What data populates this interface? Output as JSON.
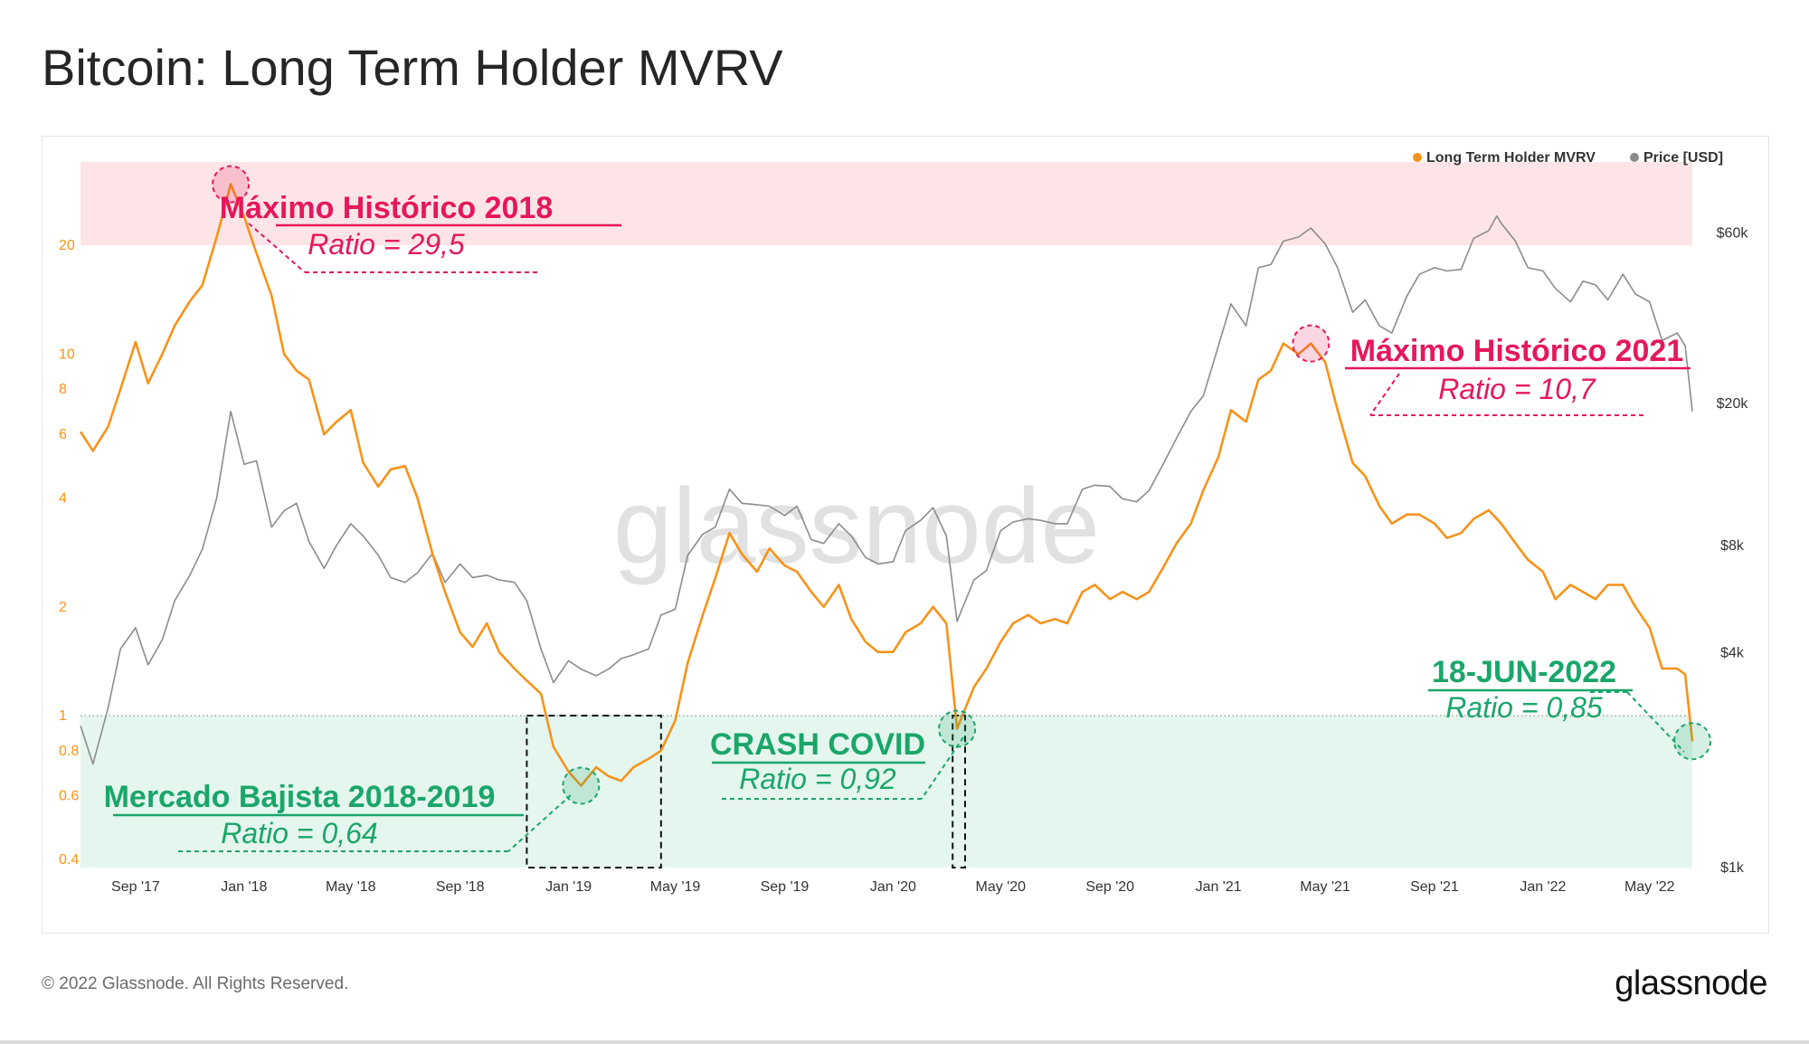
{
  "title": "Bitcoin: Long Term Holder MVRV",
  "footer": {
    "copyright": "© 2022 Glassnode. All Rights Reserved.",
    "logo": "glassnode"
  },
  "watermark": "glassnode",
  "colors": {
    "mvrv": "#f7931a",
    "price": "#8c8c8c",
    "high_zone": "#fde4e6",
    "low_zone": "#e4f6ee",
    "pink_annotation": "#e6175c",
    "green_annotation": "#1aa66a"
  },
  "chart_data": {
    "type": "line",
    "title": "Bitcoin: Long Term Holder MVRV",
    "legend_position": "top-right",
    "x_ticks": [
      "Sep '17",
      "Jan '18",
      "May '18",
      "Sep '18",
      "Jan '19",
      "May '19",
      "Sep '19",
      "Jan '20",
      "May '20",
      "Sep '20",
      "Jan '21",
      "May '21",
      "Sep '21",
      "Jan '22",
      "May '22"
    ],
    "y_left": {
      "scale": "log",
      "range": [
        0.38,
        34
      ],
      "ticks": [
        "0.4",
        "0.6",
        "0.8",
        "1",
        "2",
        "4",
        "6",
        "8",
        "10",
        "20"
      ]
    },
    "y_right": {
      "scale": "log",
      "range": [
        1000,
        95000
      ],
      "ticks": [
        "$1k",
        "$4k",
        "$8k",
        "$20k",
        "$60k"
      ]
    },
    "zones": [
      {
        "name": "high",
        "from": 20,
        "to": 34
      },
      {
        "name": "low",
        "from": 0.38,
        "to": 1
      }
    ],
    "series": [
      {
        "name": "Long Term Holder MVRV",
        "axis": "left",
        "points": [
          [
            "2017-07-01",
            6.1
          ],
          [
            "2017-07-15",
            5.4
          ],
          [
            "2017-08-01",
            6.3
          ],
          [
            "2017-08-15",
            8.0
          ],
          [
            "2017-09-01",
            10.8
          ],
          [
            "2017-09-15",
            8.3
          ],
          [
            "2017-10-01",
            10.0
          ],
          [
            "2017-10-15",
            12.0
          ],
          [
            "2017-11-01",
            14.0
          ],
          [
            "2017-11-15",
            15.5
          ],
          [
            "2017-12-01",
            21.0
          ],
          [
            "2017-12-17",
            29.5
          ],
          [
            "2018-01-01",
            24.0
          ],
          [
            "2018-01-15",
            19.0
          ],
          [
            "2018-02-01",
            14.5
          ],
          [
            "2018-02-15",
            10.0
          ],
          [
            "2018-03-01",
            9.0
          ],
          [
            "2018-03-15",
            8.5
          ],
          [
            "2018-04-01",
            6.0
          ],
          [
            "2018-04-15",
            6.5
          ],
          [
            "2018-05-01",
            7.0
          ],
          [
            "2018-05-15",
            5.0
          ],
          [
            "2018-06-01",
            4.3
          ],
          [
            "2018-06-15",
            4.8
          ],
          [
            "2018-07-01",
            4.9
          ],
          [
            "2018-07-15",
            4.0
          ],
          [
            "2018-08-01",
            2.8
          ],
          [
            "2018-08-15",
            2.2
          ],
          [
            "2018-09-01",
            1.7
          ],
          [
            "2018-09-15",
            1.55
          ],
          [
            "2018-10-01",
            1.8
          ],
          [
            "2018-10-15",
            1.5
          ],
          [
            "2018-11-01",
            1.35
          ],
          [
            "2018-11-15",
            1.25
          ],
          [
            "2018-12-01",
            1.15
          ],
          [
            "2018-12-15",
            0.82
          ],
          [
            "2019-01-01",
            0.7
          ],
          [
            "2019-01-15",
            0.64
          ],
          [
            "2019-02-01",
            0.72
          ],
          [
            "2019-02-15",
            0.68
          ],
          [
            "2019-03-01",
            0.66
          ],
          [
            "2019-03-15",
            0.72
          ],
          [
            "2019-04-01",
            0.76
          ],
          [
            "2019-04-15",
            0.8
          ],
          [
            "2019-05-01",
            0.97
          ],
          [
            "2019-05-15",
            1.4
          ],
          [
            "2019-06-01",
            1.9
          ],
          [
            "2019-06-15",
            2.4
          ],
          [
            "2019-07-01",
            3.2
          ],
          [
            "2019-07-15",
            2.8
          ],
          [
            "2019-08-01",
            2.5
          ],
          [
            "2019-08-15",
            2.9
          ],
          [
            "2019-09-01",
            2.6
          ],
          [
            "2019-09-15",
            2.5
          ],
          [
            "2019-10-01",
            2.2
          ],
          [
            "2019-10-15",
            2.0
          ],
          [
            "2019-11-01",
            2.3
          ],
          [
            "2019-11-15",
            1.85
          ],
          [
            "2019-12-01",
            1.6
          ],
          [
            "2019-12-15",
            1.5
          ],
          [
            "2020-01-01",
            1.5
          ],
          [
            "2020-01-15",
            1.7
          ],
          [
            "2020-02-01",
            1.8
          ],
          [
            "2020-02-15",
            2.0
          ],
          [
            "2020-03-01",
            1.8
          ],
          [
            "2020-03-13",
            0.92
          ],
          [
            "2020-04-01",
            1.2
          ],
          [
            "2020-04-15",
            1.35
          ],
          [
            "2020-05-01",
            1.6
          ],
          [
            "2020-05-15",
            1.8
          ],
          [
            "2020-06-01",
            1.9
          ],
          [
            "2020-06-15",
            1.8
          ],
          [
            "2020-07-01",
            1.85
          ],
          [
            "2020-07-15",
            1.8
          ],
          [
            "2020-08-01",
            2.2
          ],
          [
            "2020-08-15",
            2.3
          ],
          [
            "2020-09-01",
            2.1
          ],
          [
            "2020-09-15",
            2.2
          ],
          [
            "2020-10-01",
            2.1
          ],
          [
            "2020-10-15",
            2.2
          ],
          [
            "2020-11-01",
            2.6
          ],
          [
            "2020-11-15",
            3.0
          ],
          [
            "2020-12-01",
            3.4
          ],
          [
            "2020-12-15",
            4.2
          ],
          [
            "2021-01-01",
            5.2
          ],
          [
            "2021-01-15",
            7.0
          ],
          [
            "2021-02-01",
            6.5
          ],
          [
            "2021-02-15",
            8.5
          ],
          [
            "2021-03-01",
            9.0
          ],
          [
            "2021-03-15",
            10.7
          ],
          [
            "2021-04-01",
            10.0
          ],
          [
            "2021-04-15",
            10.7
          ],
          [
            "2021-05-01",
            9.5
          ],
          [
            "2021-05-15",
            7.0
          ],
          [
            "2021-06-01",
            5.0
          ],
          [
            "2021-06-15",
            4.6
          ],
          [
            "2021-07-01",
            3.8
          ],
          [
            "2021-07-15",
            3.4
          ],
          [
            "2021-08-01",
            3.6
          ],
          [
            "2021-08-15",
            3.6
          ],
          [
            "2021-09-01",
            3.4
          ],
          [
            "2021-09-15",
            3.1
          ],
          [
            "2021-10-01",
            3.2
          ],
          [
            "2021-10-15",
            3.5
          ],
          [
            "2021-11-01",
            3.7
          ],
          [
            "2021-11-15",
            3.4
          ],
          [
            "2021-12-01",
            3.0
          ],
          [
            "2021-12-15",
            2.7
          ],
          [
            "2022-01-01",
            2.5
          ],
          [
            "2022-01-15",
            2.1
          ],
          [
            "2022-02-01",
            2.3
          ],
          [
            "2022-02-15",
            2.2
          ],
          [
            "2022-03-01",
            2.1
          ],
          [
            "2022-03-15",
            2.3
          ],
          [
            "2022-04-01",
            2.3
          ],
          [
            "2022-04-15",
            2.0
          ],
          [
            "2022-05-01",
            1.75
          ],
          [
            "2022-05-15",
            1.35
          ],
          [
            "2022-06-01",
            1.35
          ],
          [
            "2022-06-10",
            1.3
          ],
          [
            "2022-06-18",
            0.85
          ]
        ]
      },
      {
        "name": "Price [USD]",
        "axis": "right",
        "points": [
          [
            "2017-07-01",
            2500
          ],
          [
            "2017-07-15",
            1950
          ],
          [
            "2017-08-01",
            2800
          ],
          [
            "2017-08-15",
            4100
          ],
          [
            "2017-09-01",
            4700
          ],
          [
            "2017-09-15",
            3700
          ],
          [
            "2017-10-01",
            4350
          ],
          [
            "2017-10-15",
            5600
          ],
          [
            "2017-11-01",
            6600
          ],
          [
            "2017-11-15",
            7800
          ],
          [
            "2017-12-01",
            10800
          ],
          [
            "2017-12-17",
            19000
          ],
          [
            "2018-01-01",
            13500
          ],
          [
            "2018-01-15",
            13800
          ],
          [
            "2018-02-01",
            9000
          ],
          [
            "2018-02-15",
            10000
          ],
          [
            "2018-03-01",
            10500
          ],
          [
            "2018-03-15",
            8200
          ],
          [
            "2018-04-01",
            6900
          ],
          [
            "2018-04-15",
            8000
          ],
          [
            "2018-05-01",
            9200
          ],
          [
            "2018-05-15",
            8500
          ],
          [
            "2018-06-01",
            7500
          ],
          [
            "2018-06-15",
            6500
          ],
          [
            "2018-07-01",
            6300
          ],
          [
            "2018-07-15",
            6700
          ],
          [
            "2018-08-01",
            7600
          ],
          [
            "2018-08-15",
            6300
          ],
          [
            "2018-09-01",
            7100
          ],
          [
            "2018-09-15",
            6500
          ],
          [
            "2018-10-01",
            6600
          ],
          [
            "2018-10-15",
            6400
          ],
          [
            "2018-11-01",
            6300
          ],
          [
            "2018-11-15",
            5600
          ],
          [
            "2018-12-01",
            4100
          ],
          [
            "2018-12-15",
            3300
          ],
          [
            "2019-01-01",
            3800
          ],
          [
            "2019-01-15",
            3600
          ],
          [
            "2019-02-01",
            3450
          ],
          [
            "2019-02-15",
            3600
          ],
          [
            "2019-03-01",
            3850
          ],
          [
            "2019-03-15",
            3950
          ],
          [
            "2019-04-01",
            4100
          ],
          [
            "2019-04-15",
            5100
          ],
          [
            "2019-05-01",
            5300
          ],
          [
            "2019-05-15",
            7500
          ],
          [
            "2019-06-01",
            8600
          ],
          [
            "2019-06-15",
            9000
          ],
          [
            "2019-07-01",
            11500
          ],
          [
            "2019-07-15",
            10500
          ],
          [
            "2019-08-01",
            10400
          ],
          [
            "2019-08-15",
            10300
          ],
          [
            "2019-09-01",
            9700
          ],
          [
            "2019-09-15",
            10300
          ],
          [
            "2019-10-01",
            8300
          ],
          [
            "2019-10-15",
            8100
          ],
          [
            "2019-11-01",
            9200
          ],
          [
            "2019-11-15",
            8500
          ],
          [
            "2019-12-01",
            7400
          ],
          [
            "2019-12-15",
            7100
          ],
          [
            "2020-01-01",
            7200
          ],
          [
            "2020-01-15",
            8800
          ],
          [
            "2020-02-01",
            9400
          ],
          [
            "2020-02-15",
            10200
          ],
          [
            "2020-03-01",
            8500
          ],
          [
            "2020-03-13",
            4900
          ],
          [
            "2020-04-01",
            6400
          ],
          [
            "2020-04-15",
            6800
          ],
          [
            "2020-05-01",
            8800
          ],
          [
            "2020-05-15",
            9300
          ],
          [
            "2020-06-01",
            9500
          ],
          [
            "2020-06-15",
            9400
          ],
          [
            "2020-07-01",
            9200
          ],
          [
            "2020-07-15",
            9200
          ],
          [
            "2020-08-01",
            11500
          ],
          [
            "2020-08-15",
            11800
          ],
          [
            "2020-09-01",
            11700
          ],
          [
            "2020-09-15",
            10800
          ],
          [
            "2020-10-01",
            10600
          ],
          [
            "2020-10-15",
            11400
          ],
          [
            "2020-11-01",
            13700
          ],
          [
            "2020-11-15",
            16000
          ],
          [
            "2020-12-01",
            19000
          ],
          [
            "2020-12-15",
            21000
          ],
          [
            "2021-01-01",
            29000
          ],
          [
            "2021-01-15",
            38000
          ],
          [
            "2021-02-01",
            33000
          ],
          [
            "2021-02-15",
            48000
          ],
          [
            "2021-03-01",
            49000
          ],
          [
            "2021-03-15",
            57000
          ],
          [
            "2021-04-01",
            58500
          ],
          [
            "2021-04-15",
            62000
          ],
          [
            "2021-05-01",
            56000
          ],
          [
            "2021-05-15",
            48000
          ],
          [
            "2021-06-01",
            36000
          ],
          [
            "2021-06-15",
            39000
          ],
          [
            "2021-07-01",
            33000
          ],
          [
            "2021-07-15",
            31500
          ],
          [
            "2021-08-01",
            40000
          ],
          [
            "2021-08-15",
            46000
          ],
          [
            "2021-09-01",
            48000
          ],
          [
            "2021-09-15",
            47000
          ],
          [
            "2021-10-01",
            47500
          ],
          [
            "2021-10-15",
            58000
          ],
          [
            "2021-11-01",
            61000
          ],
          [
            "2021-11-10",
            67000
          ],
          [
            "2021-11-15",
            64000
          ],
          [
            "2021-12-01",
            57000
          ],
          [
            "2021-12-15",
            48000
          ],
          [
            "2022-01-01",
            47000
          ],
          [
            "2022-01-15",
            42000
          ],
          [
            "2022-02-01",
            38500
          ],
          [
            "2022-02-15",
            44000
          ],
          [
            "2022-03-01",
            43000
          ],
          [
            "2022-03-15",
            39000
          ],
          [
            "2022-04-01",
            46000
          ],
          [
            "2022-04-15",
            40500
          ],
          [
            "2022-05-01",
            38500
          ],
          [
            "2022-05-15",
            30000
          ],
          [
            "2022-06-01",
            31500
          ],
          [
            "2022-06-10",
            29000
          ],
          [
            "2022-06-18",
            19000
          ]
        ]
      }
    ],
    "annotations": [
      {
        "title": "Máximo Histórico 2018",
        "subtitle": "Ratio = 29,5",
        "date": "2017-12-17",
        "value": 29.5,
        "tone": "pink"
      },
      {
        "title": "Máximo Histórico 2021",
        "subtitle": "Ratio = 10,7",
        "date": "2021-04-15",
        "value": 10.7,
        "tone": "pink"
      },
      {
        "title": "Mercado Bajista 2018-2019",
        "subtitle": "Ratio = 0,64",
        "date": "2019-01-15",
        "value": 0.64,
        "tone": "green"
      },
      {
        "title": "CRASH COVID",
        "subtitle": "Ratio = 0,92",
        "date": "2020-03-13",
        "value": 0.92,
        "tone": "green"
      },
      {
        "title": "18-JUN-2022",
        "subtitle": "Ratio = 0,85",
        "date": "2022-06-18",
        "value": 0.85,
        "tone": "green"
      }
    ],
    "highlight_ranges": [
      {
        "from": "2018-11-15",
        "to": "2019-04-15"
      },
      {
        "from": "2020-03-08",
        "to": "2020-03-22"
      }
    ]
  }
}
